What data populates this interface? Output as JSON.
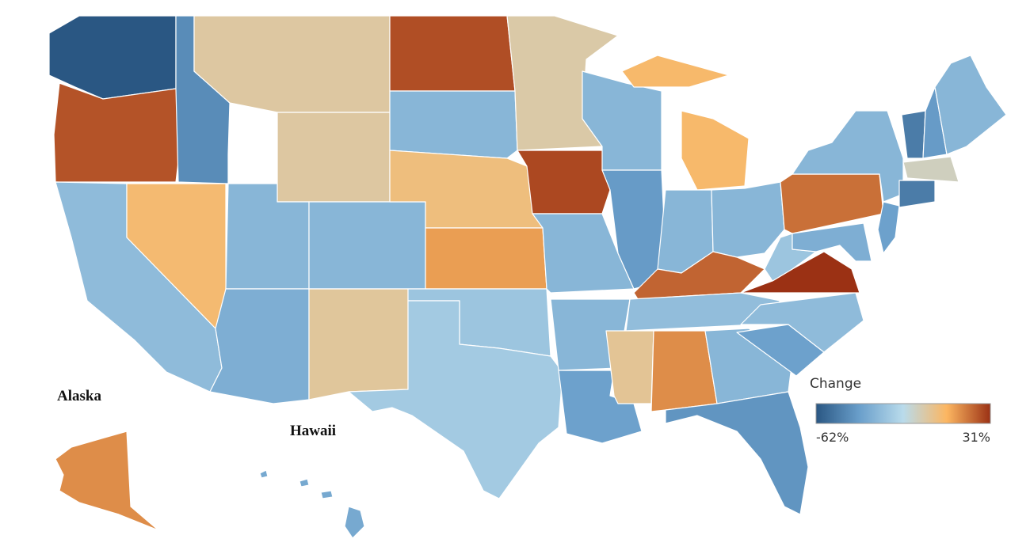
{
  "map": {
    "values": [
      -62,
      25,
      -28,
      5,
      -45,
      -3,
      -3,
      -30,
      -30,
      -33,
      -2,
      26,
      -30,
      3,
      12,
      -24,
      -22,
      -4,
      27,
      -30,
      -30,
      -38,
      -30,
      -40,
      6,
      -30,
      -30,
      22,
      -27,
      -1,
      15,
      -30,
      -42,
      -38,
      -28,
      31,
      -24,
      20,
      -30,
      -38,
      -33,
      -50,
      -40,
      -30,
      -8,
      -50,
      15,
      -35
    ],
    "colors": [
      "#2a5783",
      "#6a9fcb",
      "#b9dbeb",
      "#fcb661",
      "#9b3114"
    ],
    "legend": {
      "title": "Change",
      "ticks": [
        {
          "value": -62,
          "label": "-62%"
        },
        {
          "value": 31,
          "label": "31%"
        }
      ]
    },
    "labels": {
      "alaska": "Alaska",
      "hawaii": "Hawaii"
    }
  }
}
